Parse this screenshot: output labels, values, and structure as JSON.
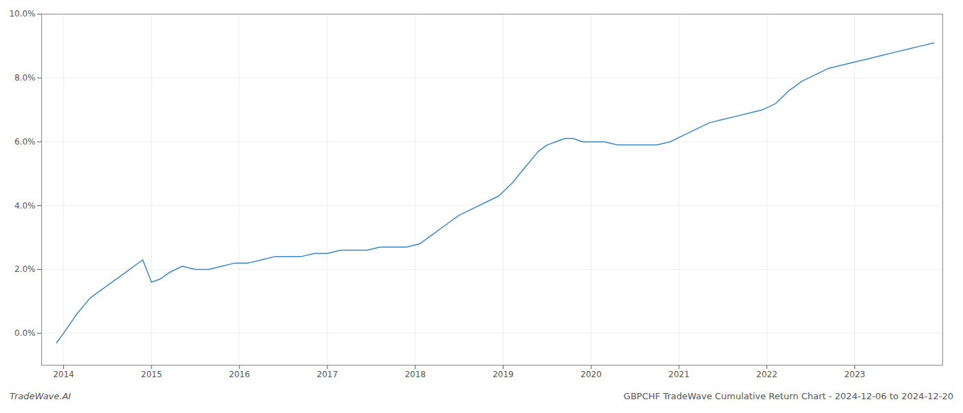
{
  "chart_data": {
    "type": "line",
    "annotations": [
      "TradeWave.AI",
      "GBPCHF TradeWave Cumulative Return Chart - 2024-12-06 to 2024-12-20"
    ],
    "color": "#3a87c8",
    "grid": true,
    "x": [
      2013.92,
      2014.0,
      2014.15,
      2014.3,
      2014.5,
      2014.7,
      2014.9,
      2015.0,
      2015.1,
      2015.2,
      2015.35,
      2015.5,
      2015.65,
      2015.8,
      2015.95,
      2016.1,
      2016.25,
      2016.4,
      2016.55,
      2016.7,
      2016.85,
      2017.0,
      2017.15,
      2017.3,
      2017.45,
      2017.6,
      2017.75,
      2017.9,
      2018.05,
      2018.2,
      2018.35,
      2018.5,
      2018.65,
      2018.8,
      2018.95,
      2019.1,
      2019.25,
      2019.4,
      2019.5,
      2019.6,
      2019.7,
      2019.8,
      2019.9,
      2020.0,
      2020.15,
      2020.3,
      2020.45,
      2020.6,
      2020.75,
      2020.9,
      2021.05,
      2021.2,
      2021.35,
      2021.5,
      2021.65,
      2021.8,
      2021.95,
      2022.1,
      2022.25,
      2022.4,
      2022.55,
      2022.7,
      2022.85,
      2023.0,
      2023.15,
      2023.3,
      2023.45,
      2023.6,
      2023.75,
      2023.9
    ],
    "values": [
      -0.003,
      0.0,
      0.006,
      0.011,
      0.015,
      0.019,
      0.023,
      0.016,
      0.017,
      0.019,
      0.021,
      0.02,
      0.02,
      0.021,
      0.022,
      0.022,
      0.023,
      0.024,
      0.024,
      0.024,
      0.025,
      0.025,
      0.026,
      0.026,
      0.026,
      0.027,
      0.027,
      0.027,
      0.028,
      0.031,
      0.034,
      0.037,
      0.039,
      0.041,
      0.043,
      0.047,
      0.052,
      0.057,
      0.059,
      0.06,
      0.061,
      0.061,
      0.06,
      0.06,
      0.06,
      0.059,
      0.059,
      0.059,
      0.059,
      0.06,
      0.062,
      0.064,
      0.066,
      0.067,
      0.068,
      0.069,
      0.07,
      0.072,
      0.076,
      0.079,
      0.081,
      0.083,
      0.084,
      0.085,
      0.086,
      0.087,
      0.088,
      0.089,
      0.09,
      0.091
    ],
    "xlim": [
      2013.75,
      2024.0
    ],
    "ylim": [
      -0.01,
      0.1
    ],
    "xticks": [
      2014,
      2015,
      2016,
      2017,
      2018,
      2019,
      2020,
      2021,
      2022,
      2023
    ],
    "yticks": [
      {
        "value": 0.0,
        "label": "0.0%"
      },
      {
        "value": 0.02,
        "label": "2.0%"
      },
      {
        "value": 0.04,
        "label": "4.0%"
      },
      {
        "value": 0.06,
        "label": "6.0%"
      },
      {
        "value": 0.08,
        "label": "8.0%"
      },
      {
        "value": 0.1,
        "label": "10.0%"
      }
    ]
  }
}
